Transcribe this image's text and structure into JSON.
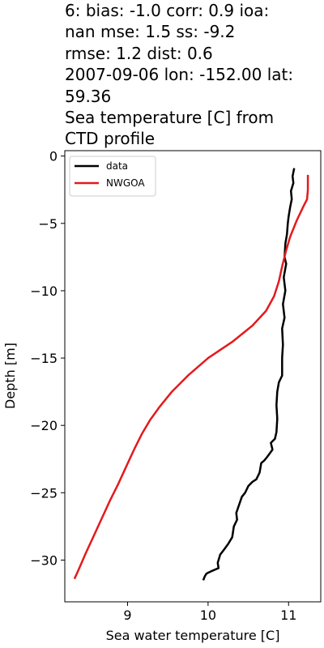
{
  "title_lines": [
    "6: bias: -1.0  corr: 0.9  ioa:",
    "nan  mse: 1.5  ss: -9.2",
    "rmse: 1.2  dist: 0.6",
    "2007-09-06 lon: -152.00 lat:",
    "59.36",
    "Sea temperature [C] from",
    "CTD profile"
  ],
  "chart_data": {
    "type": "line",
    "title": "6: bias: -1.0  corr: 0.9  ioa: nan  mse: 1.5  ss: -9.2 rmse: 1.2  dist: 0.6 2007-09-06 lon: -152.00 lat: 59.36 Sea temperature [C] from CTD profile",
    "xlabel": "Sea water temperature [C]",
    "ylabel": "Depth [m]",
    "xlim": [
      8.22,
      11.4
    ],
    "ylim": [
      -33.1,
      0.4
    ],
    "xticks": [
      9,
      10,
      11
    ],
    "yticks": [
      0,
      -5,
      -10,
      -15,
      -20,
      -25,
      -30
    ],
    "xtick_labels": [
      "9",
      "10",
      "11"
    ],
    "ytick_labels": [
      "0",
      "−5",
      "−10",
      "−15",
      "−20",
      "−25",
      "−30"
    ],
    "grid": false,
    "legend_position": "top-left",
    "series": [
      {
        "name": "data",
        "color": "#000000",
        "points": [
          [
            11.07,
            -0.9
          ],
          [
            11.05,
            -1.5
          ],
          [
            11.06,
            -2.0
          ],
          [
            11.03,
            -2.6
          ],
          [
            11.04,
            -3.2
          ],
          [
            11.02,
            -3.8
          ],
          [
            11.0,
            -4.5
          ],
          [
            10.99,
            -5.0
          ],
          [
            10.98,
            -5.8
          ],
          [
            10.96,
            -6.5
          ],
          [
            10.95,
            -7.5
          ],
          [
            10.97,
            -8.0
          ],
          [
            10.94,
            -9.0
          ],
          [
            10.96,
            -10.0
          ],
          [
            10.93,
            -11.0
          ],
          [
            10.95,
            -12.0
          ],
          [
            10.92,
            -12.8
          ],
          [
            10.93,
            -14.0
          ],
          [
            10.92,
            -15.0
          ],
          [
            10.92,
            -16.3
          ],
          [
            10.88,
            -16.8
          ],
          [
            10.86,
            -17.5
          ],
          [
            10.85,
            -18.5
          ],
          [
            10.86,
            -19.5
          ],
          [
            10.85,
            -20.5
          ],
          [
            10.83,
            -21.0
          ],
          [
            10.78,
            -21.3
          ],
          [
            10.8,
            -21.8
          ],
          [
            10.74,
            -22.3
          ],
          [
            10.7,
            -22.6
          ],
          [
            10.66,
            -22.8
          ],
          [
            10.64,
            -23.5
          ],
          [
            10.6,
            -24.0
          ],
          [
            10.55,
            -24.2
          ],
          [
            10.5,
            -24.5
          ],
          [
            10.46,
            -25.0
          ],
          [
            10.42,
            -25.3
          ],
          [
            10.38,
            -26.0
          ],
          [
            10.35,
            -26.5
          ],
          [
            10.36,
            -27.0
          ],
          [
            10.32,
            -27.5
          ],
          [
            10.3,
            -28.3
          ],
          [
            10.25,
            -28.8
          ],
          [
            10.2,
            -29.2
          ],
          [
            10.15,
            -29.6
          ],
          [
            10.12,
            -30.2
          ],
          [
            10.13,
            -30.6
          ],
          [
            10.05,
            -30.8
          ],
          [
            9.98,
            -31.0
          ],
          [
            9.96,
            -31.2
          ],
          [
            9.94,
            -31.5
          ]
        ]
      },
      {
        "name": "NWGOA",
        "color": "#e41a1c",
        "points": [
          [
            11.24,
            -1.4
          ],
          [
            11.24,
            -2.5
          ],
          [
            11.23,
            -3.2
          ],
          [
            11.18,
            -3.8
          ],
          [
            11.1,
            -4.8
          ],
          [
            11.02,
            -6.0
          ],
          [
            10.97,
            -7.0
          ],
          [
            10.92,
            -8.2
          ],
          [
            10.88,
            -9.3
          ],
          [
            10.82,
            -10.4
          ],
          [
            10.72,
            -11.5
          ],
          [
            10.55,
            -12.6
          ],
          [
            10.3,
            -13.8
          ],
          [
            10.0,
            -15.0
          ],
          [
            9.75,
            -16.3
          ],
          [
            9.55,
            -17.5
          ],
          [
            9.4,
            -18.6
          ],
          [
            9.28,
            -19.6
          ],
          [
            9.18,
            -20.6
          ],
          [
            9.08,
            -21.8
          ],
          [
            8.98,
            -23.1
          ],
          [
            8.88,
            -24.4
          ],
          [
            8.78,
            -25.6
          ],
          [
            8.68,
            -26.9
          ],
          [
            8.58,
            -28.2
          ],
          [
            8.48,
            -29.5
          ],
          [
            8.4,
            -30.6
          ],
          [
            8.34,
            -31.4
          ]
        ]
      }
    ]
  }
}
